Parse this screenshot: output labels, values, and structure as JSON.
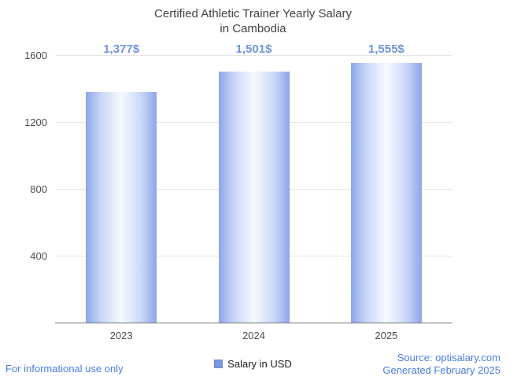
{
  "title": {
    "line1": "Certified Athletic Trainer Yearly Salary",
    "line2": "in Cambodia"
  },
  "chart_data": {
    "type": "bar",
    "title": "Certified Athletic Trainer Yearly Salary in Cambodia",
    "categories": [
      "2023",
      "2024",
      "2025"
    ],
    "series": [
      {
        "name": "Salary in USD",
        "values": [
          1377,
          1501,
          1555
        ],
        "value_labels": [
          "1,377$",
          "1,501$",
          "1,555$"
        ]
      }
    ],
    "xlabel": "",
    "ylabel": "",
    "ylim": [
      0,
      1600
    ],
    "yticks": [
      400,
      800,
      1200,
      1600
    ],
    "grid": true,
    "legend": {
      "label": "Salary in USD",
      "position": "bottom"
    },
    "colors": {
      "bar_edge": "#8ea6e9",
      "bar_center": "#f7faff",
      "value_label": "#7095d5",
      "gridline": "#e6e6e6",
      "axis_text": "#4d4d4d",
      "title_text": "#424242"
    }
  },
  "footer": {
    "left": "For informational use only",
    "source": "Source: optisalary.com",
    "generated": "Generated February 2025",
    "link_color": "#4a7de0"
  }
}
